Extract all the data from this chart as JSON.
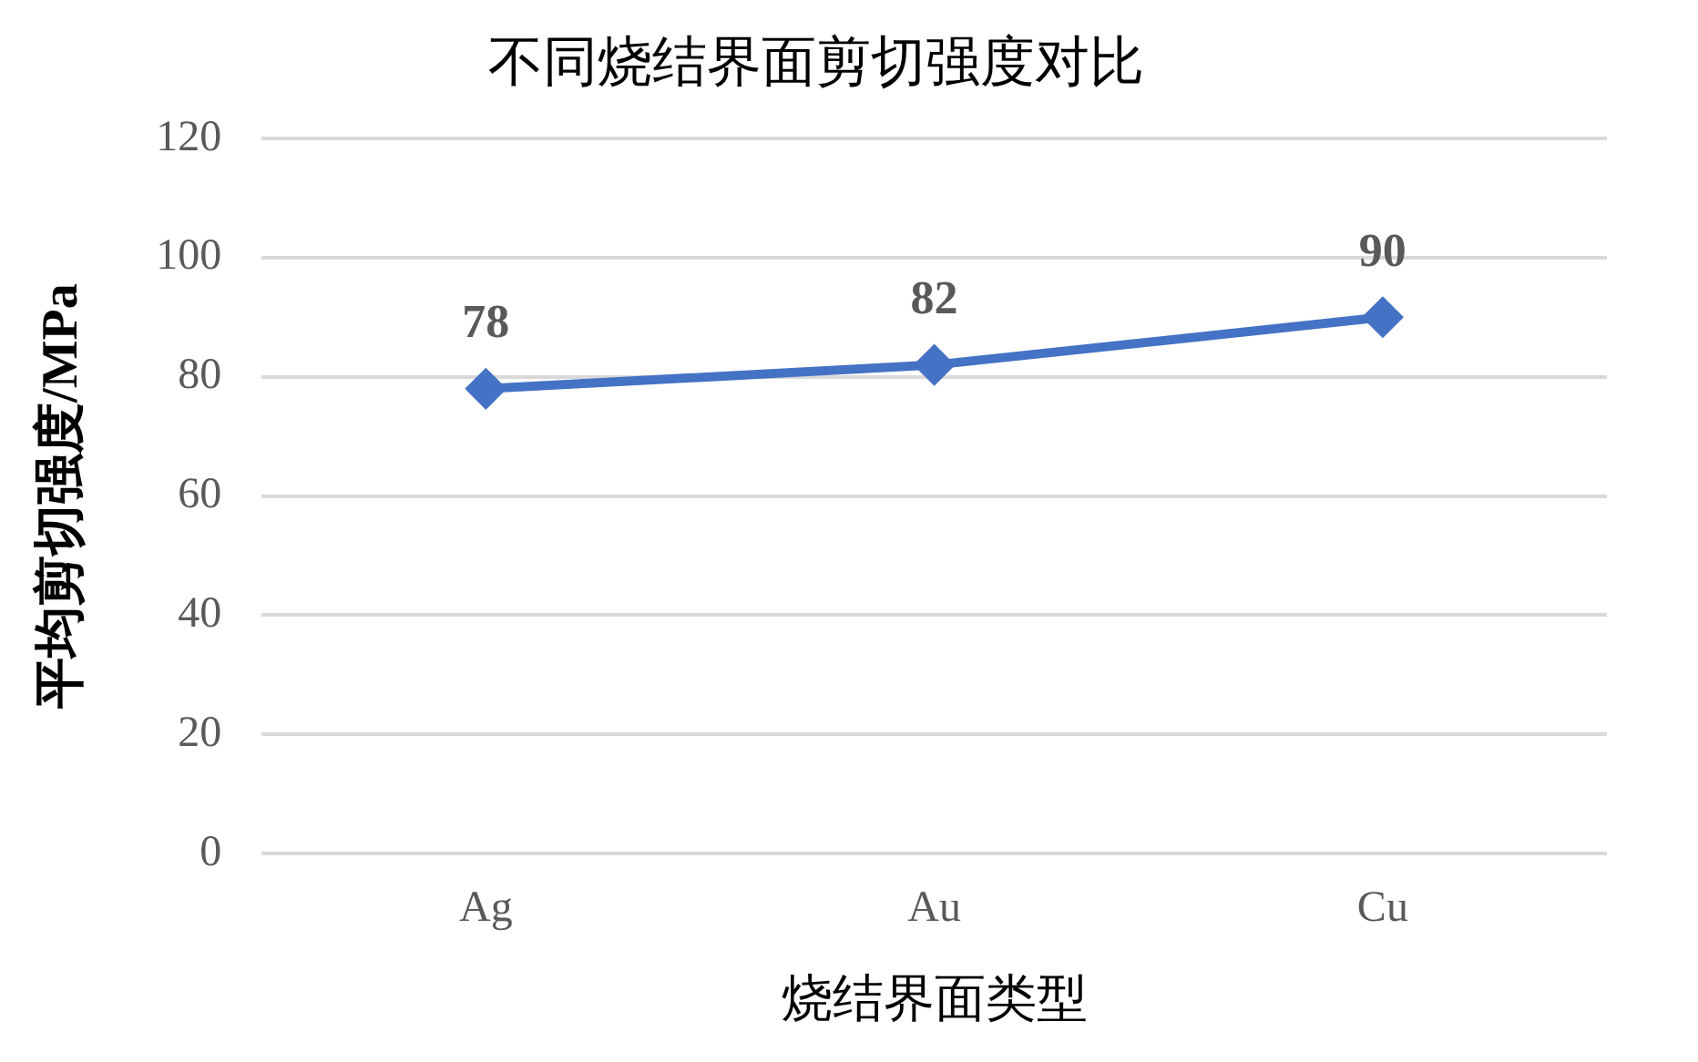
{
  "chart_data": {
    "type": "line",
    "title": "不同烧结界面剪切强度对比",
    "xlabel": "烧结界面类型",
    "ylabel": "平均剪切强度/MPa",
    "categories": [
      "Ag",
      "Au",
      "Cu"
    ],
    "series": [
      {
        "color": "#4472c4",
        "values": [
          78,
          82,
          90
        ]
      }
    ],
    "ylim": [
      0,
      120
    ],
    "yticks": [
      0,
      20,
      40,
      60,
      80,
      100,
      120
    ],
    "grid": "y",
    "marker": "diamond",
    "line_style": "solid",
    "data_labels": true,
    "legend": false
  }
}
